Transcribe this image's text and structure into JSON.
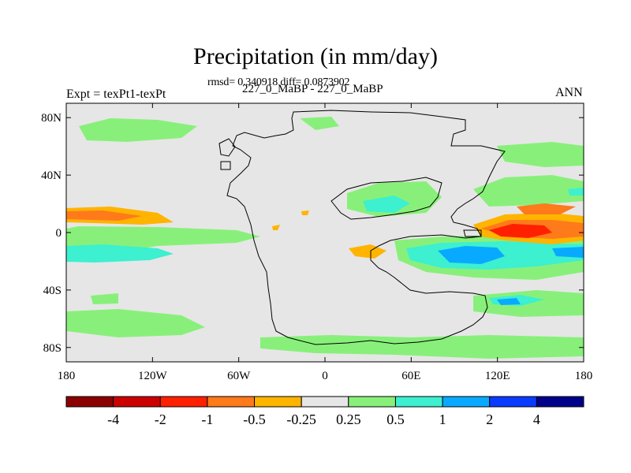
{
  "title": "Precipitation (in mm/day)",
  "stats_line": "rmsd= 0.340918 diff= 0.0873902",
  "case_line": "227_0_MaBP - 227_0_MaBP",
  "left_label": "Expt = texPt1-texPt",
  "right_label": "ANN",
  "map": {
    "projection": "cylindrical equidistant",
    "lon_range": [
      -180,
      180
    ],
    "lat_range": [
      -90,
      90
    ],
    "x_ticks": [
      "180",
      "120W",
      "60W",
      "0",
      "60E",
      "120E",
      "180"
    ],
    "y_ticks": [
      "80N",
      "40N",
      "0",
      "40S",
      "80S"
    ],
    "background_color": "#e6e6e6"
  },
  "colorbar": {
    "labels": [
      "-4",
      "-2",
      "-1",
      "-0.5",
      "-0.25",
      "0.25",
      "0.5",
      "1",
      "2",
      "4"
    ],
    "colors": [
      "#8b0000",
      "#cd0000",
      "#ff2000",
      "#ff7a1a",
      "#ffb400",
      "#e6e6e6",
      "#88f07a",
      "#3cf0d0",
      "#08aaff",
      "#0a3cff",
      "#00008b"
    ]
  },
  "chart_data": {
    "type": "heatmap",
    "title": "Precipitation (in mm/day)",
    "x_range": [
      -180,
      180
    ],
    "y_range": [
      -90,
      90
    ],
    "levels": [
      -4,
      -2,
      -1,
      -0.5,
      -0.25,
      0.25,
      0.5,
      1,
      2,
      4
    ],
    "anomaly_regions": [
      {
        "lon": [
          -180,
          -155
        ],
        "lat": [
          8,
          15
        ],
        "value": -0.75
      },
      {
        "lon": [
          -180,
          -120
        ],
        "lat": [
          -12,
          -5
        ],
        "value": 0.35
      },
      {
        "lon": [
          -180,
          -120
        ],
        "lat": [
          -17,
          -7
        ],
        "value": 0.75
      },
      {
        "lon": [
          -150,
          -110
        ],
        "lat": [
          70,
          78
        ],
        "value": 0.35
      },
      {
        "lon": [
          -180,
          -140
        ],
        "lat": [
          -70,
          -55
        ],
        "value": 0.35
      },
      {
        "lon": [
          -55,
          -10
        ],
        "lat": [
          -8,
          -2
        ],
        "value": -0.4
      },
      {
        "lon": [
          40,
          90
        ],
        "lat": [
          -15,
          -5
        ],
        "value": 0.75
      },
      {
        "lon": [
          55,
          85
        ],
        "lat": [
          -20,
          -10
        ],
        "value": 1.5
      },
      {
        "lon": [
          30,
          45
        ],
        "lat": [
          -15,
          -8
        ],
        "value": -0.4
      },
      {
        "lon": [
          60,
          90
        ],
        "lat": [
          20,
          30
        ],
        "value": 0.35
      },
      {
        "lon": [
          65,
          85
        ],
        "lat": [
          17,
          24
        ],
        "value": 0.75
      },
      {
        "lon": [
          110,
          175
        ],
        "lat": [
          -5,
          7
        ],
        "value": -2
      },
      {
        "lon": [
          140,
          170
        ],
        "lat": [
          8,
          15
        ],
        "value": -0.75
      },
      {
        "lon": [
          120,
          180
        ],
        "lat": [
          -15,
          -5
        ],
        "value": 0.75
      },
      {
        "lon": [
          120,
          180
        ],
        "lat": [
          -18,
          -8
        ],
        "value": 1.5
      },
      {
        "lon": [
          115,
          145
        ],
        "lat": [
          -50,
          -45
        ],
        "value": 0.75
      },
      {
        "lon": [
          20,
          160
        ],
        "lat": [
          -80,
          -70
        ],
        "value": 0.35
      }
    ]
  }
}
